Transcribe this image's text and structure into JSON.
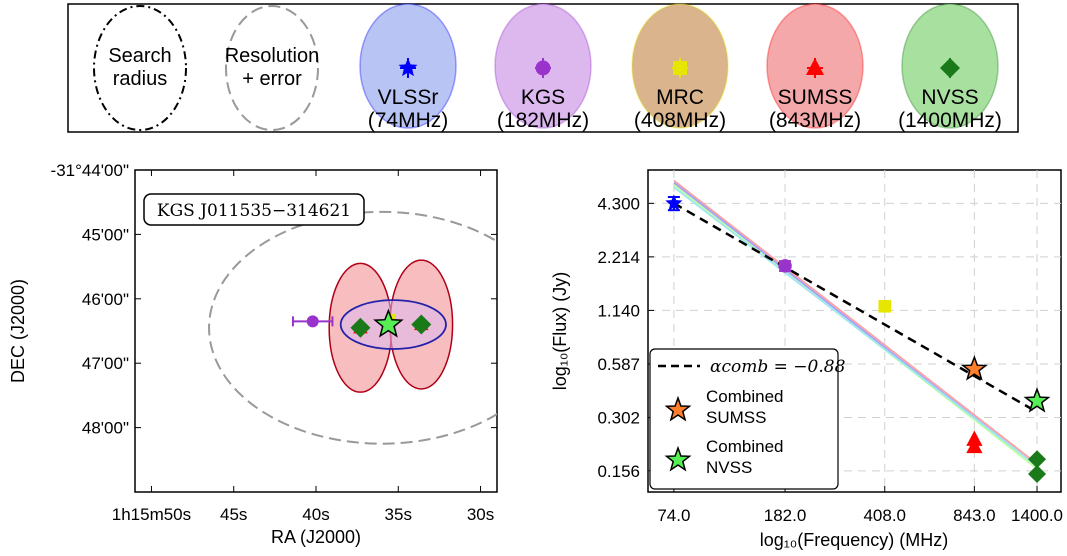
{
  "legend": {
    "search_label": [
      "Search",
      "radius"
    ],
    "resolution_label": [
      "Resolution",
      "+ error"
    ],
    "surveys": [
      {
        "name": "VLSSr",
        "freq_label": "(74MHz)",
        "color": "#0000ff",
        "fill": "#b8c4f4",
        "marker": "star"
      },
      {
        "name": "KGS",
        "freq_label": "(182MHz)",
        "color": "#9933cc",
        "fill": "#dcb8ee",
        "marker": "circle"
      },
      {
        "name": "MRC",
        "freq_label": "(408MHz)",
        "color": "#e6e600",
        "fill": "#d9b48c",
        "marker": "square"
      },
      {
        "name": "SUMSS",
        "freq_label": "(843MHz)",
        "color": "#ff0000",
        "fill": "#f5a8aa",
        "marker": "triangle"
      },
      {
        "name": "NVSS",
        "freq_label": "(1400MHz)",
        "color": "#1a7a1a",
        "fill": "#a8e0a0",
        "marker": "diamond"
      }
    ]
  },
  "chart_data": [
    {
      "type": "scatter",
      "title": "",
      "xlabel": "RA (J2000)",
      "ylabel": "DEC (J2000)",
      "annotation": "KGS J011535−314621",
      "x_axis_reversed": true,
      "xlim_seconds": [
        51,
        29
      ],
      "ylim_arcmin": [
        44,
        49
      ],
      "x_ticks": [
        {
          "value": 50,
          "label": "1h15m50s"
        },
        {
          "value": 45,
          "label": "45s"
        },
        {
          "value": 40,
          "label": "40s"
        },
        {
          "value": 35,
          "label": "35s"
        },
        {
          "value": 30,
          "label": "30s"
        }
      ],
      "y_ticks": [
        {
          "value": 44,
          "label": "-31°44'00\""
        },
        {
          "value": 45,
          "label": "45'00\""
        },
        {
          "value": 46,
          "label": "46'00\""
        },
        {
          "value": 47,
          "label": "47'00\""
        },
        {
          "value": 48,
          "label": "48'00\""
        }
      ],
      "search_radius": {
        "ra": 40.4,
        "dec": 46.4,
        "radius_ra_s": 18.5,
        "radius_arcmin": 3.6
      },
      "resolution_ellipse": {
        "ra": 36.0,
        "dec": 46.45,
        "radius_ra_s": 10.5,
        "radius_arcmin": 1.8
      },
      "sumss_beams": [
        {
          "ra": 37.3,
          "dec": 46.45,
          "radius_ra_s": 1.9,
          "radius_arcmin": 1.0
        },
        {
          "ra": 33.6,
          "dec": 46.4,
          "radius_ra_s": 1.9,
          "radius_arcmin": 1.0
        }
      ],
      "nvss_beam": {
        "ra": 35.3,
        "dec": 46.4,
        "radius_ra_s": 3.2,
        "radius_arcmin": 0.38
      },
      "points": [
        {
          "survey": "KGS",
          "ra": 40.2,
          "dec": 46.35,
          "xerr_s": 1.2
        },
        {
          "survey": "SUMSS",
          "ra": 37.3,
          "dec": 46.45
        },
        {
          "survey": "NVSS",
          "ra": 37.3,
          "dec": 46.45
        },
        {
          "survey": "SUMSS",
          "ra": 33.6,
          "dec": 46.4
        },
        {
          "survey": "NVSS",
          "ra": 33.6,
          "dec": 46.4
        },
        {
          "survey": "MRC",
          "ra": 35.4,
          "dec": 46.3
        },
        {
          "survey": "Combined",
          "ra": 35.6,
          "dec": 46.4
        }
      ]
    },
    {
      "type": "scatter",
      "title": "",
      "xlabel": "log₁₀(Frequency) (MHz)",
      "ylabel": "log₁₀(Flux) (Jy)",
      "x_scale": "log",
      "y_scale": "log",
      "xlim": [
        60,
        1700
      ],
      "ylim": [
        0.12,
        6.5
      ],
      "grid": true,
      "x_ticks": [
        74,
        182,
        408,
        843,
        1400
      ],
      "x_tick_labels": [
        "74.0",
        "182.0",
        "408.0",
        "843.0",
        "1400.0"
      ],
      "y_ticks": [
        0.156,
        0.302,
        0.587,
        1.14,
        2.214,
        4.3
      ],
      "y_tick_labels": [
        "0.156",
        "0.302",
        "0.587",
        "1.140",
        "2.214",
        "4.300"
      ],
      "series": [
        {
          "name": "VLSSr",
          "x": [
            74
          ],
          "y": [
            4.3
          ],
          "yerr": [
            0.35
          ]
        },
        {
          "name": "KGS",
          "x": [
            182
          ],
          "y": [
            1.98
          ],
          "yerr": [
            0.12
          ]
        },
        {
          "name": "MRC",
          "x": [
            408
          ],
          "y": [
            1.2
          ]
        },
        {
          "name": "SUMSS",
          "x": [
            843,
            843
          ],
          "y": [
            0.23,
            0.21
          ]
        },
        {
          "name": "NVSS",
          "x": [
            1400,
            1400
          ],
          "y": [
            0.18,
            0.15
          ]
        },
        {
          "name": "Combined SUMSS",
          "x": [
            843
          ],
          "y": [
            0.55
          ]
        },
        {
          "name": "Combined NVSS",
          "x": [
            1400
          ],
          "y": [
            0.37
          ]
        }
      ],
      "fit_line": {
        "label": "αcomb = −0.88",
        "alpha": -0.88,
        "x0": 74,
        "y0": 4.3,
        "x_range": [
          74,
          1400
        ],
        "style": "dashed"
      },
      "individual_fits": [
        {
          "color": "#ffa0a0",
          "x": [
            74,
            1400
          ],
          "y": [
            5.7,
            0.17
          ]
        },
        {
          "color": "#a0a0ff",
          "x": [
            74,
            1400
          ],
          "y": [
            5.55,
            0.165
          ]
        },
        {
          "color": "#c0ffa0",
          "x": [
            74,
            1400
          ],
          "y": [
            5.4,
            0.16
          ]
        },
        {
          "color": "#a0e8f0",
          "x": [
            74,
            1400
          ],
          "y": [
            5.25,
            0.165
          ]
        }
      ],
      "legend_entries": [
        {
          "label": "αcomb = −0.88"
        },
        {
          "label": "Combined SUMSS",
          "lines": [
            "Combined",
            "SUMSS"
          ],
          "color": "#ff7f2a"
        },
        {
          "label": "Combined NVSS",
          "lines": [
            "Combined",
            "NVSS"
          ],
          "color": "#55ee55"
        }
      ],
      "legend_position": "lower-left"
    }
  ]
}
